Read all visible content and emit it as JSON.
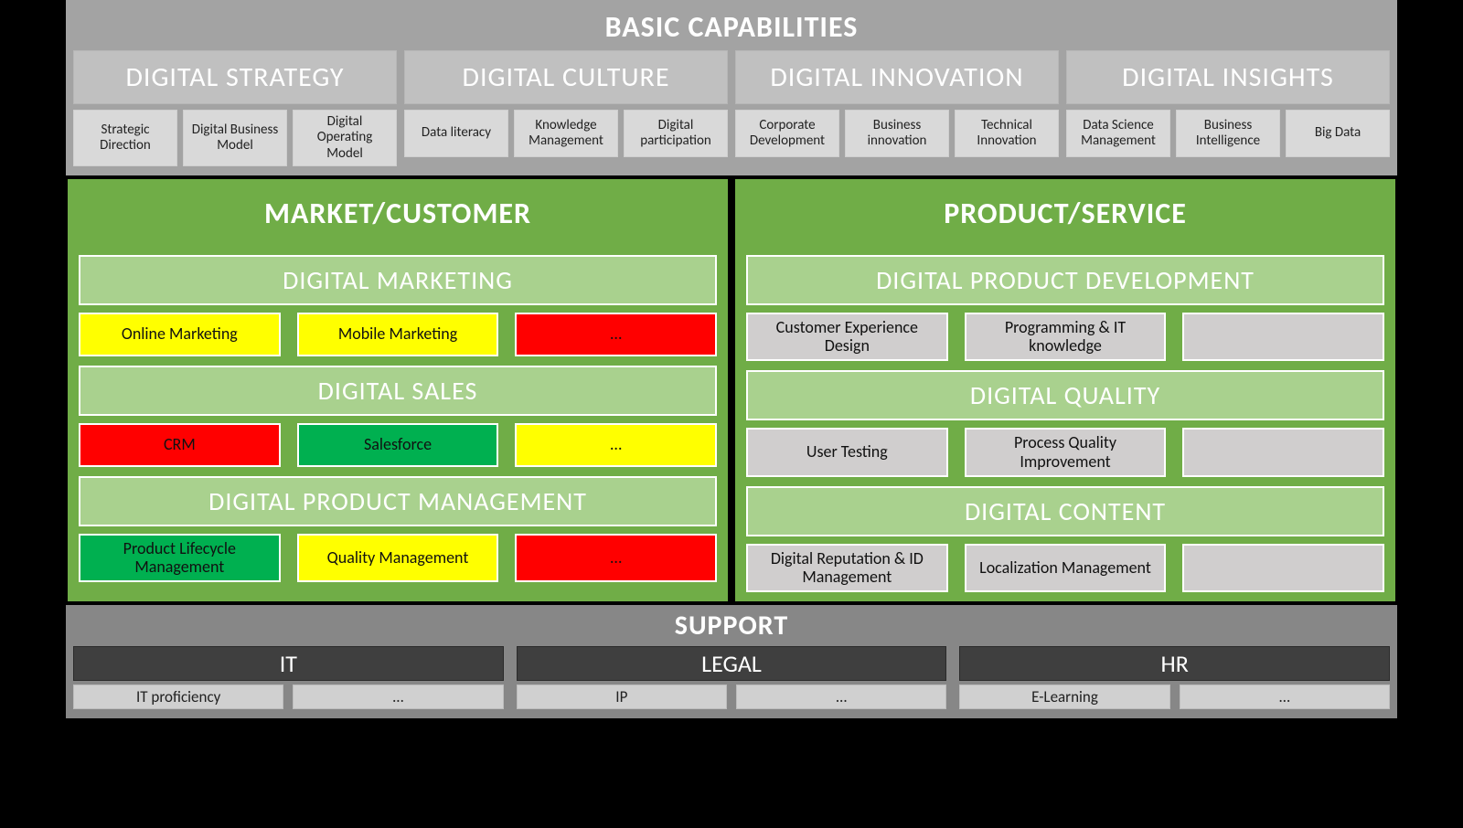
{
  "colors": {
    "page_bg": "#000000",
    "top_bg": "#a3a3a3",
    "top_group_header_bg": "#c0c0c0",
    "top_chip_bg": "#d9d9d9",
    "panel_green_bg": "#70ad47",
    "panel_header_bg": "#70ad47",
    "sub_header_bg": "#a9d18e",
    "cell_neutral_bg": "#d0cece",
    "cell_yellow": "#ffff00",
    "cell_red": "#ff0000",
    "cell_green": "#00b050",
    "support_bg": "#878787",
    "support_header_bg": "#3f3f3f",
    "support_chip_bg": "#d0d0d0",
    "white": "#ffffff",
    "text_dark": "#111111"
  },
  "typography": {
    "title_fontsize": 32,
    "group_header_fontsize": 30,
    "sub_header_fontsize": 28,
    "cell_fontsize": 18,
    "chip_fontsize": 15
  },
  "top": {
    "title": "BASIC CAPABILITIES",
    "groups": [
      {
        "title": "DIGITAL STRATEGY",
        "chips": [
          "Strategic Direction",
          "Digital Business Model",
          "Digital Operating Model"
        ]
      },
      {
        "title": "DIGITAL CULTURE",
        "chips": [
          "Data literacy",
          "Knowledge Management",
          "Digital participation"
        ]
      },
      {
        "title": "DIGITAL INNOVATION",
        "chips": [
          "Corporate Development",
          "Business innovation",
          "Technical Innovation"
        ]
      },
      {
        "title": "DIGITAL INSIGHTS",
        "chips": [
          "Data Science Management",
          "Business Intelligence",
          "Big Data"
        ]
      }
    ]
  },
  "panels": [
    {
      "title": "MARKET/CUSTOMER",
      "cell_style": "status",
      "sections": [
        {
          "title": "DIGITAL MARKETING",
          "cells": [
            {
              "label": "Online Marketing",
              "bg": "#ffff00"
            },
            {
              "label": "Mobile Marketing",
              "bg": "#ffff00"
            },
            {
              "label": "…",
              "bg": "#ff0000"
            }
          ]
        },
        {
          "title": "DIGITAL SALES",
          "cells": [
            {
              "label": "CRM",
              "bg": "#ff0000"
            },
            {
              "label": "Salesforce",
              "bg": "#00b050"
            },
            {
              "label": "…",
              "bg": "#ffff00"
            }
          ]
        },
        {
          "title": "DIGITAL PRODUCT MANAGEMENT",
          "cells": [
            {
              "label": "Product Lifecycle Management",
              "bg": "#00b050"
            },
            {
              "label": "Quality Management",
              "bg": "#ffff00"
            },
            {
              "label": "…",
              "bg": "#ff0000"
            }
          ]
        }
      ]
    },
    {
      "title": "PRODUCT/SERVICE",
      "cell_style": "neutral",
      "sections": [
        {
          "title": "DIGITAL PRODUCT DEVELOPMENT",
          "cells": [
            {
              "label": "Customer Experience Design",
              "bg": "#d0cece"
            },
            {
              "label": "Programming & IT knowledge",
              "bg": "#d0cece"
            },
            {
              "label": "",
              "bg": "#d0cece"
            }
          ]
        },
        {
          "title": "DIGITAL QUALITY",
          "cells": [
            {
              "label": "User Testing",
              "bg": "#d0cece"
            },
            {
              "label": "Process Quality Improvement",
              "bg": "#d0cece"
            },
            {
              "label": "",
              "bg": "#d0cece"
            }
          ]
        },
        {
          "title": "DIGITAL CONTENT",
          "cells": [
            {
              "label": "Digital Reputation & ID Management",
              "bg": "#d0cece"
            },
            {
              "label": "Localization Management",
              "bg": "#d0cece"
            },
            {
              "label": "",
              "bg": "#d0cece"
            }
          ]
        }
      ]
    }
  ],
  "support": {
    "title": "SUPPORT",
    "groups": [
      {
        "title": "IT",
        "chips": [
          "IT proficiency",
          "…"
        ]
      },
      {
        "title": "LEGAL",
        "chips": [
          "IP",
          "…"
        ]
      },
      {
        "title": "HR",
        "chips": [
          "E-Learning",
          "…"
        ]
      }
    ]
  }
}
